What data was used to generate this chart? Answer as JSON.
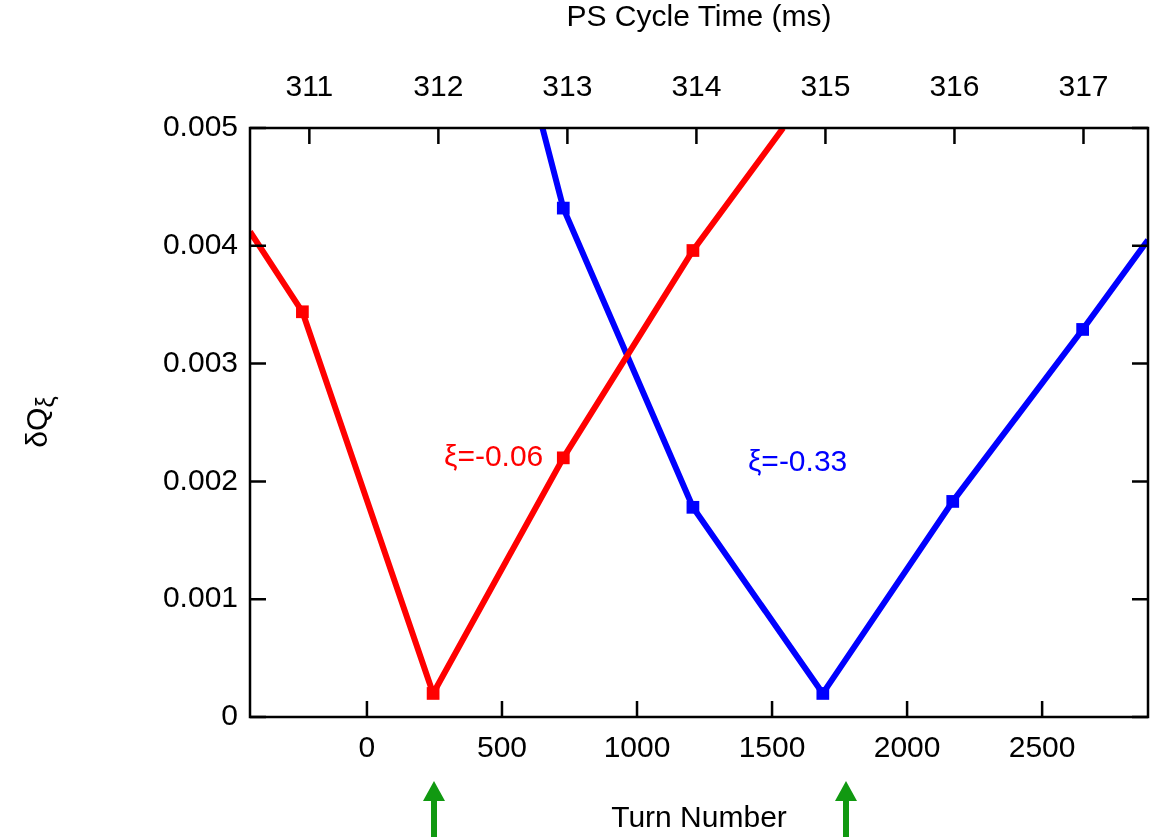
{
  "chart_data": {
    "type": "line",
    "xlabel": "Turn Number",
    "ylabel": "δQ$_{ξ}$",
    "x2label": "PS Cycle Time (ms)",
    "xlim": [
      -433,
      2892
    ],
    "xticks": [
      0,
      500,
      1000,
      1500,
      2000,
      2500
    ],
    "x2lim": [
      310.54,
      317.5
    ],
    "x2ticks": [
      311,
      312,
      313,
      314,
      315,
      316,
      317
    ],
    "ylim": [
      0,
      0.005
    ],
    "yticks": [
      0,
      0.001,
      0.002,
      0.003,
      0.004,
      0.005
    ],
    "grid": false,
    "legend": false,
    "line_style": "solid",
    "series": [
      {
        "name": "ξ=-0.06",
        "marker": "none",
        "color": "#ff0000",
        "x": [
          -433,
          -239,
          245,
          727,
          1207,
          1541
        ],
        "values": [
          0.00412,
          0.00344,
          0.0002,
          0.0022,
          0.00396,
          0.005
        ]
      },
      {
        "name": "ξ=-0.33",
        "marker": "none",
        "color": "#0000ff",
        "x": [
          650,
          727,
          1207,
          1688,
          2169,
          2650,
          2892
        ],
        "values": [
          0.005,
          0.00432,
          0.00178,
          0.0002,
          0.00183,
          0.00329,
          0.00405
        ]
      },
      {
        "type": "scatter",
        "marker": "square",
        "color": "#ff0000",
        "x": [
          -239,
          245,
          727,
          1207
        ],
        "values": [
          0.00344,
          0.0002,
          0.0022,
          0.00396
        ]
      },
      {
        "type": "scatter",
        "marker": "square",
        "color": "#0000ff",
        "x": [
          727,
          1207,
          1688,
          2169,
          2650
        ],
        "values": [
          0.00432,
          0.00178,
          0.0002,
          0.00183,
          0.00329
        ]
      }
    ]
  }
}
